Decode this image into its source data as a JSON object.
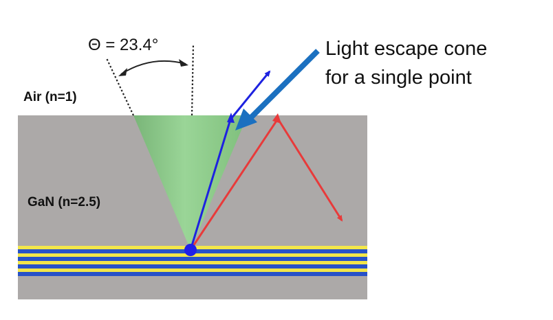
{
  "labels": {
    "angle": "Θ = 23.4°",
    "air": "Air (n=1)",
    "gan": "GaN (n=2.5)",
    "callout_line1": "Light escape cone",
    "callout_line2": "for a single point"
  },
  "colors": {
    "slab": "#aca9a8",
    "cone": "#8fcf8c",
    "blue_ray": "#1d22e0",
    "red_ray": "#e83a3a",
    "callout_arrow": "#1b70c0",
    "stripe_blue": "#2752c8",
    "stripe_yellow": "#f2e64a",
    "source_dot": "#1f1fe8"
  }
}
